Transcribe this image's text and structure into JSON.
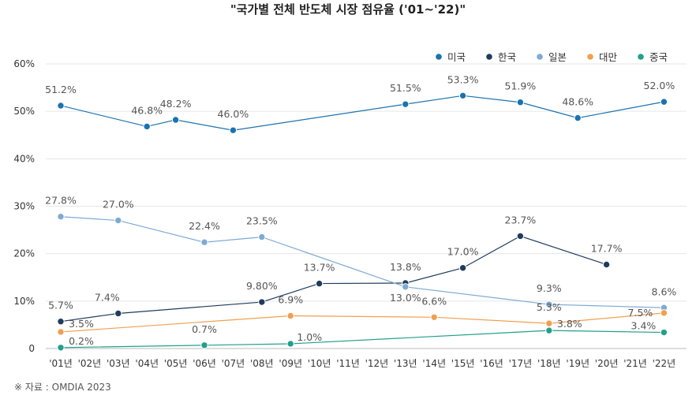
{
  "source": "※ 자료 : OMDIA 2023",
  "chart_data": {
    "type": "line",
    "title": "\"국가별 전체 반도체 시장 점유율 ('01~'22)\"",
    "xlabel": "",
    "ylabel": "",
    "ylim": [
      0,
      60
    ],
    "y_ticks": [
      "0",
      "10%",
      "20%",
      "30%",
      "40%",
      "50%",
      "60%"
    ],
    "categories": [
      "'01년",
      "'02년",
      "'03년",
      "'04년",
      "'05년",
      "'06년",
      "'07년",
      "'08년",
      "'09년",
      "'10년",
      "'11년",
      "'12년",
      "'13년",
      "'14년",
      "'15년",
      "'16년",
      "'17년",
      "'18년",
      "'19년",
      "'20년",
      "'21년",
      "'22년"
    ],
    "legend_position": "top-right",
    "grid": "horizontal",
    "series": [
      {
        "name": "미국",
        "color": "#1a73b0",
        "points": [
          [
            0,
            51.2,
            "51.2%"
          ],
          [
            3,
            46.8,
            "46.8%"
          ],
          [
            4,
            48.2,
            "48.2%"
          ],
          [
            6,
            46.0,
            "46.0%"
          ],
          [
            12,
            51.5,
            "51.5%"
          ],
          [
            14,
            53.3,
            "53.3%"
          ],
          [
            16,
            51.9,
            "51.9%"
          ],
          [
            18,
            48.6,
            "48.6%"
          ],
          [
            21,
            52.0,
            "52.0%"
          ]
        ]
      },
      {
        "name": "한국",
        "color": "#1f3c5e",
        "points": [
          [
            0,
            5.7,
            "5.7%"
          ],
          [
            2,
            7.4,
            "7.4%"
          ],
          [
            7,
            9.8,
            "9.80%"
          ],
          [
            9,
            13.7,
            "13.7%"
          ],
          [
            12,
            13.8,
            "13.8%"
          ],
          [
            14,
            17.0,
            "17.0%"
          ],
          [
            16,
            23.7,
            "23.7%"
          ],
          [
            19,
            17.7,
            "17.7%"
          ]
        ]
      },
      {
        "name": "일본",
        "color": "#7faad4",
        "points": [
          [
            0,
            27.8,
            "27.8%"
          ],
          [
            2,
            27.0,
            "27.0%"
          ],
          [
            5,
            22.4,
            "22.4%"
          ],
          [
            7,
            23.5,
            "23.5%"
          ],
          [
            12,
            13.0,
            "13.0%"
          ],
          [
            17,
            9.3,
            "9.3%"
          ],
          [
            21,
            8.6,
            "8.6%"
          ]
        ]
      },
      {
        "name": "대만",
        "color": "#f0a050",
        "points": [
          [
            0,
            3.5,
            "3.5%"
          ],
          [
            8,
            6.9,
            "6.9%"
          ],
          [
            13,
            6.6,
            "6.6%"
          ],
          [
            17,
            5.3,
            "5.3%"
          ],
          [
            21,
            7.5,
            "7.5%"
          ]
        ]
      },
      {
        "name": "중국",
        "color": "#22a08c",
        "points": [
          [
            0,
            0.2,
            "0.2%"
          ],
          [
            5,
            0.7,
            "0.7%"
          ],
          [
            8,
            1.0,
            "1.0%"
          ],
          [
            17,
            3.8,
            "3.8%"
          ],
          [
            21,
            3.4,
            "3.4%"
          ]
        ]
      }
    ]
  }
}
